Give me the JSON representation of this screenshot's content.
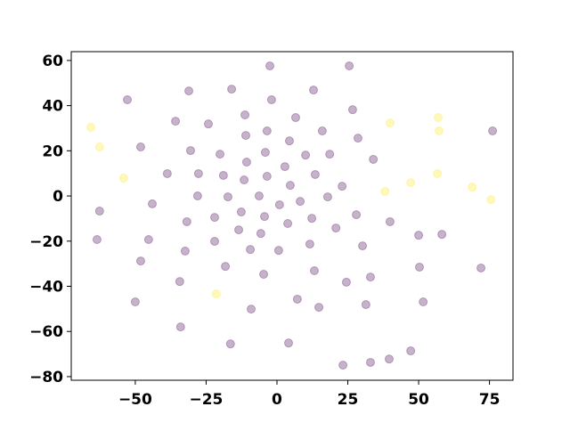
{
  "chart_data": {
    "type": "scatter",
    "xlim": [
      -72.6,
      83.3
    ],
    "ylim": [
      -81.6,
      63.9
    ],
    "xticks": [
      {
        "value": -50,
        "label": "−50"
      },
      {
        "value": -25,
        "label": "−25"
      },
      0,
      25,
      50,
      75
    ],
    "yticks": [
      {
        "value": -80,
        "label": "−80"
      },
      {
        "value": -60,
        "label": "−60"
      },
      {
        "value": -40,
        "label": "−40"
      },
      {
        "value": -20,
        "label": "−20"
      },
      0,
      20,
      40,
      60
    ],
    "alpha": 0.3,
    "series": [
      {
        "color": "#440154",
        "x": [
          -2.5,
          25.5,
          -52.8,
          -31.1,
          -16,
          12.9,
          -1.9,
          26.7,
          -35.8,
          -11.3,
          6.6,
          -24.2,
          -48.1,
          -30.5,
          -11,
          -3.5,
          16,
          28.6,
          76.1,
          4.4,
          -4.1,
          10.1,
          18.6,
          -20.1,
          -10.7,
          34,
          -38.7,
          -27.7,
          -18.9,
          2.8,
          -3.5,
          -11.6,
          13.5,
          4.7,
          23,
          -28,
          -17.3,
          -6.3,
          8.2,
          17.9,
          0.9,
          -44,
          -62.6,
          -12.6,
          -22,
          -4.4,
          12.3,
          28,
          -31.8,
          3.8,
          20.8,
          39.9,
          -13.5,
          -5.7,
          58.2,
          50,
          -63.5,
          -45.3,
          -22,
          11.6,
          30.2,
          -9.4,
          0.6,
          -32.4,
          -48.1,
          -18.2,
          50.3,
          72,
          13.2,
          -4.7,
          -34.3,
          24.5,
          33,
          7.2,
          51.6,
          -50,
          31.4,
          14.8,
          -9.1,
          -34,
          -16.4,
          4.1,
          47.2,
          39.6,
          33,
          23.3
        ],
        "y": [
          57.6,
          57.6,
          42.6,
          46.5,
          47.3,
          46.9,
          42.6,
          38.2,
          33.1,
          35.9,
          34.7,
          31.9,
          21.7,
          20.1,
          26.8,
          28.8,
          28.8,
          25.6,
          28.8,
          24.4,
          19.3,
          18.1,
          18.5,
          18.5,
          15,
          16.2,
          9.9,
          9.9,
          9.1,
          13,
          8.7,
          7.1,
          9.5,
          4.7,
          4.3,
          0,
          -0.4,
          0,
          -2.4,
          -0.4,
          -3.9,
          -3.5,
          -6.7,
          -7.1,
          -9.5,
          -9.1,
          -9.9,
          -8.3,
          -11.4,
          -12.2,
          -14.2,
          -11.4,
          -15,
          -16.6,
          -17,
          -17.4,
          -19.3,
          -19.3,
          -20.1,
          -21.3,
          -22.1,
          -23.7,
          -24.1,
          -24.4,
          -28.8,
          -31.2,
          -31.5,
          -31.9,
          -33.1,
          -34.7,
          -37.9,
          -38.2,
          -35.9,
          -45.7,
          -46.9,
          -46.9,
          -48.1,
          -49.3,
          -50.1,
          -58,
          -65.5,
          -65.1,
          -68.6,
          -72.2,
          -73.7,
          -74.9
        ]
      },
      {
        "color": "#fde725",
        "x": [
          -65.7,
          -62.6,
          -54.1,
          39.9,
          56.9,
          57.2,
          56.6,
          47.2,
          38.1,
          68.9,
          75.5,
          -21.4
        ],
        "y": [
          30.4,
          21.7,
          7.9,
          32.3,
          34.7,
          28.8,
          9.9,
          5.9,
          2,
          3.9,
          -1.6,
          -43.4
        ]
      }
    ]
  }
}
